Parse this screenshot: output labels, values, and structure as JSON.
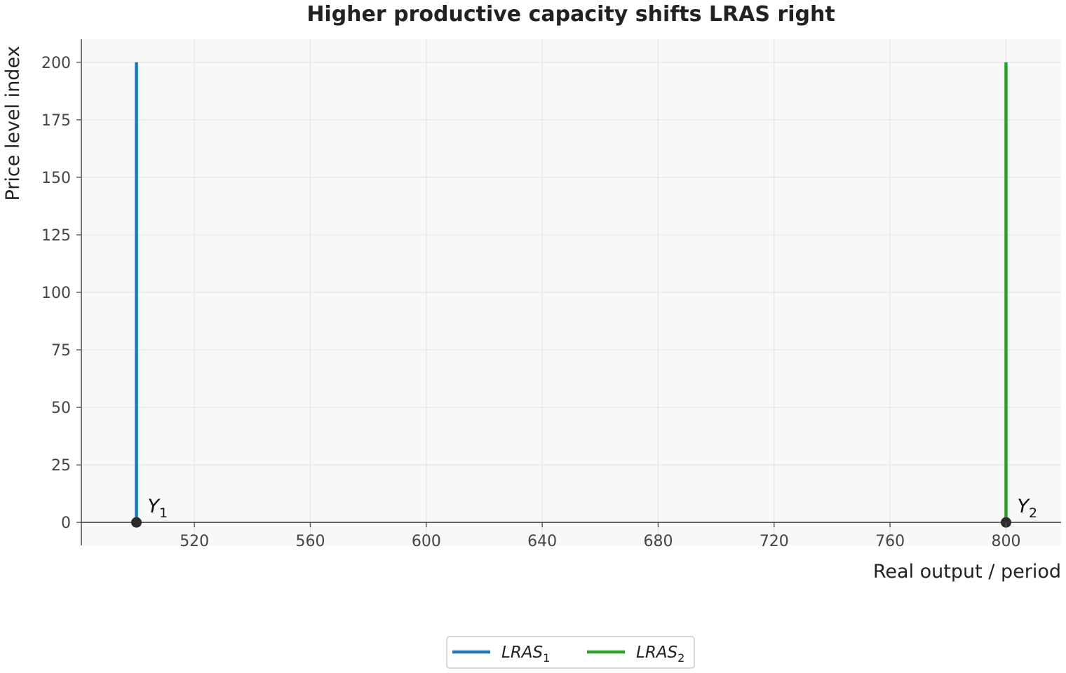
{
  "chart_data": {
    "type": "line",
    "title": "Higher productive capacity shifts LRAS right",
    "xlabel": "Real output / period",
    "ylabel": "Price level index",
    "xlim": [
      481,
      819
    ],
    "ylim": [
      -10,
      210
    ],
    "x_ticks": [
      520,
      560,
      600,
      640,
      680,
      720,
      760,
      800
    ],
    "x_tick_labels": [
      "520",
      "560",
      "600",
      "640",
      "680",
      "720",
      "760",
      "800"
    ],
    "y_ticks": [
      0,
      25,
      50,
      75,
      100,
      125,
      150,
      175,
      200
    ],
    "y_tick_labels": [
      "0",
      "25",
      "50",
      "75",
      "100",
      "125",
      "150",
      "175",
      "200"
    ],
    "grid": true,
    "legend_position": "bottom-center",
    "series": [
      {
        "name": "LRAS",
        "name_sub": "1",
        "color": "#1f77b4",
        "x": [
          500,
          500
        ],
        "y": [
          0,
          200
        ]
      },
      {
        "name": "LRAS",
        "name_sub": "2",
        "color": "#2ca02c",
        "x": [
          800,
          800
        ],
        "y": [
          0,
          200
        ]
      }
    ],
    "points": [
      {
        "label": "Y",
        "label_sub": "1",
        "x": 500,
        "y": 0
      },
      {
        "label": "Y",
        "label_sub": "2",
        "x": 800,
        "y": 0
      }
    ]
  }
}
